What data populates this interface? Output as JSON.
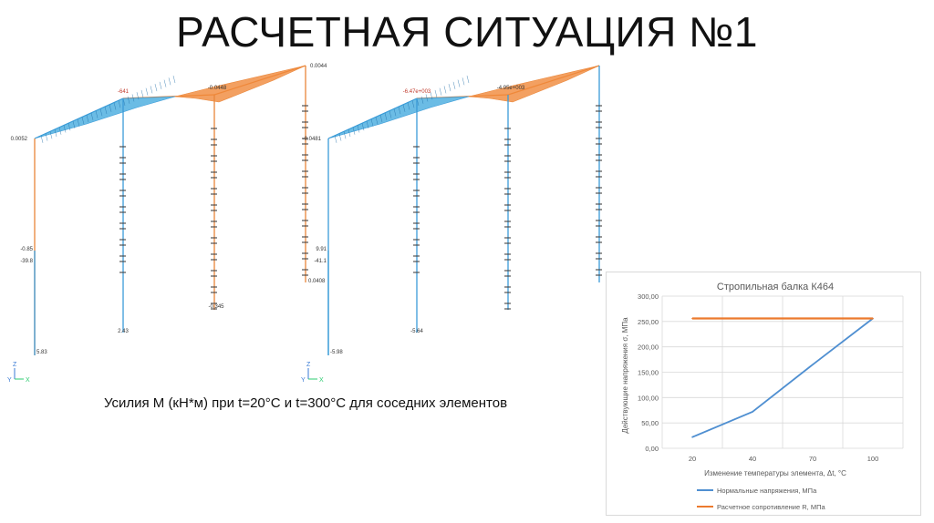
{
  "slide": {
    "title": "РАСЧЕТНАЯ СИТУАЦИЯ №1",
    "caption": "Усилия М (кН*м) при t=20°C и t=300°C для соседних элементов"
  },
  "frames": [
    {
      "axis_labels": {
        "z": "Z",
        "y": "Y",
        "x": "X"
      },
      "labels": {
        "left_top": "0.0052",
        "peak1": "-641",
        "peak2": "-0.0448",
        "top_right": "0.0044",
        "mid1": "-0.85",
        "mid2": "-39.8",
        "base_left": "5.83",
        "right_base": "0.0408",
        "col2_base": "2.43",
        "col3_base": "-0.345"
      }
    },
    {
      "axis_labels": {
        "z": "Z",
        "y": "Y",
        "x": "X"
      },
      "labels": {
        "left_top": "-0.0481",
        "peak1": "-6.47e+003",
        "peak2": "-4.95e+003",
        "mid1": "9.91",
        "mid2": "-41.1",
        "base_left": "-5.98",
        "col2_base": "-5.64"
      }
    }
  ],
  "colors": {
    "rafter_left": "#3aa6dc",
    "rafter_right": "#f0883a",
    "column_blue": "#3b9bd8",
    "column_orange": "#e9863a",
    "series_stress": "#4f8fd1",
    "series_resistance": "#ec7a2e"
  },
  "chart_data": {
    "type": "line",
    "title": "Стропильная балка К464",
    "xlabel": "Изменение температуры элемента, Δt, °С",
    "ylabel": "Действующие напряжения σ, МПа",
    "categories": [
      "20",
      "40",
      "70",
      "100"
    ],
    "yticks": [
      "0,00",
      "50,00",
      "100,00",
      "150,00",
      "200,00",
      "250,00",
      "300,00"
    ],
    "ylim": [
      0,
      300
    ],
    "grid": true,
    "legend_position": "bottom",
    "series": [
      {
        "name": "Нормальные напряжения, МПа",
        "values": [
          22,
          72,
          165,
          256
        ]
      },
      {
        "name": "Расчетное сопротивление R, МПа",
        "values": [
          256,
          256,
          256,
          256
        ]
      }
    ]
  }
}
